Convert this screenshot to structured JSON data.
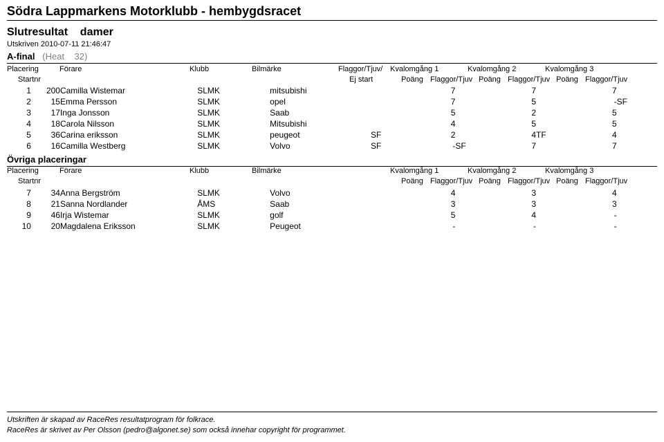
{
  "title": "Södra Lappmarkens Motorklubb - hembygdsracet",
  "subtitle_left": "Slutresultat",
  "subtitle_right": "damer",
  "printed_prefix": "Utskriven",
  "printed_ts": "2010-07-11 21:46:47",
  "heat": {
    "afinal": "A-final",
    "heat_label": "(Heat",
    "heat_num": "32)",
    "color_gray": "#808080"
  },
  "colors": {
    "text": "#000000",
    "background": "#ffffff",
    "rule": "#000000"
  },
  "hdr": {
    "placering": "Placering",
    "startnr": "Startnr",
    "forare": "Förare",
    "klubb": "Klubb",
    "bilmarke": "Bilmärke",
    "flaggor_tjuv_ej": "Flaggor/Tjuv/",
    "ej_start": "Ej start",
    "kv1": "Kvalomgång 1",
    "kv2": "Kvalomgång 2",
    "kv3": "Kvalomgång 3",
    "poang": "Poäng",
    "flaggor_tjuv": "Flaggor/Tjuv"
  },
  "ovriga_label": "Övriga placeringar",
  "rows_a": [
    {
      "plac": "1",
      "start": "200",
      "name": "Camilla Wistemar",
      "klubb": "SLMK",
      "bil": "mitsubishi",
      "ft": "",
      "p1": "7",
      "f1": "",
      "p2": "7",
      "f2": "",
      "p3": "7",
      "f3": ""
    },
    {
      "plac": "2",
      "start": "15",
      "name": "Emma Persson",
      "klubb": "SLMK",
      "bil": "opel",
      "ft": "",
      "p1": "7",
      "f1": "",
      "p2": "5",
      "f2": "",
      "p3": "-",
      "f3": "SF"
    },
    {
      "plac": "3",
      "start": "17",
      "name": "Inga Jonsson",
      "klubb": "SLMK",
      "bil": "Saab",
      "ft": "",
      "p1": "5",
      "f1": "",
      "p2": "2",
      "f2": "",
      "p3": "5",
      "f3": ""
    },
    {
      "plac": "4",
      "start": "18",
      "name": "Carola Nilsson",
      "klubb": "SLMK",
      "bil": "Mitsubishi",
      "ft": "",
      "p1": "4",
      "f1": "",
      "p2": "5",
      "f2": "",
      "p3": "5",
      "f3": ""
    },
    {
      "plac": "5",
      "start": "36",
      "name": "Carina eriksson",
      "klubb": "SLMK",
      "bil": "peugeot",
      "ft": "SF",
      "p1": "2",
      "f1": "",
      "p2": "4",
      "f2": "TF",
      "p3": "4",
      "f3": ""
    },
    {
      "plac": "6",
      "start": "16",
      "name": "Camilla Westberg",
      "klubb": "SLMK",
      "bil": "Volvo",
      "ft": "SF",
      "p1": "-",
      "f1": "SF",
      "p2": "7",
      "f2": "",
      "p3": "7",
      "f3": ""
    }
  ],
  "rows_b": [
    {
      "plac": "7",
      "start": "34",
      "name": "Anna Bergström",
      "klubb": "SLMK",
      "bil": "Volvo",
      "p1": "4",
      "f1": "",
      "p2": "3",
      "f2": "",
      "p3": "4",
      "f3": ""
    },
    {
      "plac": "8",
      "start": "21",
      "name": "Sanna Nordlander",
      "klubb": "ÅMS",
      "bil": "Saab",
      "p1": "3",
      "f1": "",
      "p2": "3",
      "f2": "",
      "p3": "3",
      "f3": ""
    },
    {
      "plac": "9",
      "start": "46",
      "name": "Irja Wistemar",
      "klubb": "SLMK",
      "bil": "golf",
      "p1": "5",
      "f1": "",
      "p2": "4",
      "f2": "",
      "p3": "-",
      "f3": ""
    },
    {
      "plac": "10",
      "start": "20",
      "name": "Magdalena Eriksson",
      "klubb": "SLMK",
      "bil": "Peugeot",
      "p1": "-",
      "f1": "",
      "p2": "-",
      "f2": "",
      "p3": "-",
      "f3": ""
    }
  ],
  "footer": {
    "line1": "Utskriften är skapad av RaceRes resultatprogram för folkrace.",
    "line2": "RaceRes är skrivet av Per Olsson (pedro@algonet.se) som också innehar copyright för programmet."
  }
}
